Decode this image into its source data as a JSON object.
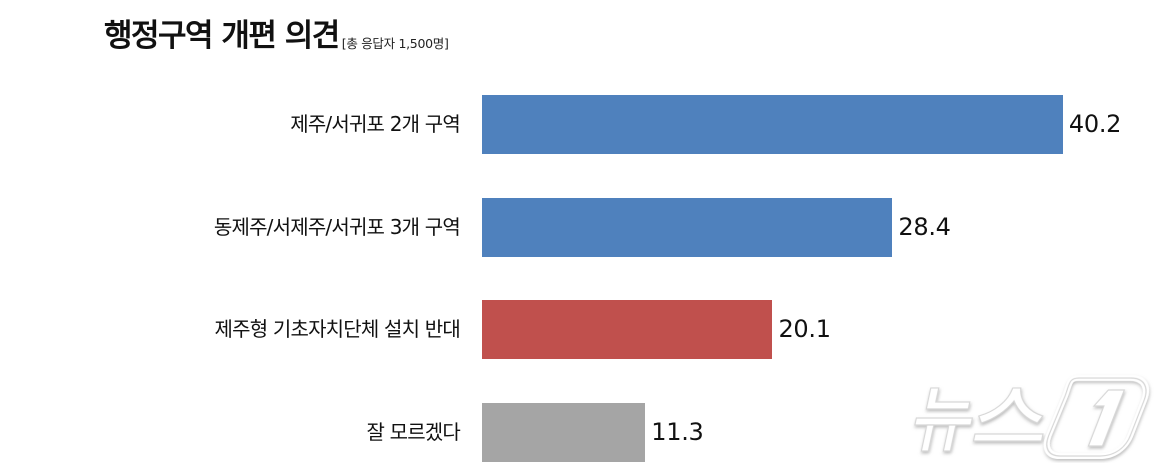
{
  "header": {
    "title": "행정구역 개편 의견",
    "subtitle": "[총 응답자 1,500명]"
  },
  "watermark": {
    "text": "뉴스1",
    "icon": "news1-logo-icon"
  },
  "colors": {
    "blue": "#4F81BD",
    "red": "#C0504D",
    "gray": "#A5A5A5"
  },
  "rows": [
    {
      "label": "제주/서귀포 2개 구역",
      "value": "40.2",
      "color": "#4F81BD"
    },
    {
      "label": "동제주/서제주/서귀포 3개 구역",
      "value": "28.4",
      "color": "#4F81BD"
    },
    {
      "label": "제주형 기초자치단체 설치 반대",
      "value": "20.1",
      "color": "#C0504D"
    },
    {
      "label": "잘 모르겠다",
      "value": "11.3",
      "color": "#A5A5A5"
    }
  ],
  "chart_data": {
    "type": "bar",
    "orientation": "horizontal",
    "title": "행정구역 개편 의견",
    "subtitle": "[총 응답자 1,500명]",
    "categories": [
      "제주/서귀포 2개 구역",
      "동제주/서제주/서귀포 3개 구역",
      "제주형 기초자치단체 설치 반대",
      "잘 모르겠다"
    ],
    "values": [
      40.2,
      28.4,
      20.1,
      11.3
    ],
    "colors": [
      "#4F81BD",
      "#4F81BD",
      "#C0504D",
      "#A5A5A5"
    ],
    "unit": "%",
    "xlabel": "",
    "ylabel": "",
    "grid": false,
    "legend": null,
    "data_labels": true
  }
}
